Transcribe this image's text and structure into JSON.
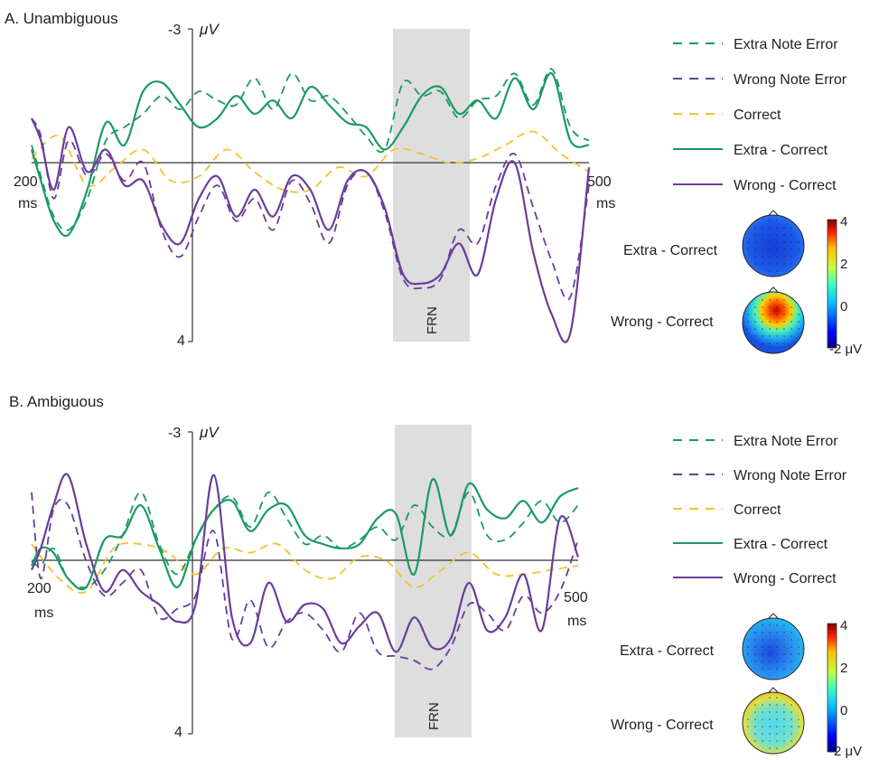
{
  "chart_data": [
    {
      "type": "line",
      "title": "A. Unambiguous",
      "xlabel": "ms",
      "ylabel": "μV",
      "xlim": [
        200,
        500
      ],
      "ylim": [
        -3,
        4
      ],
      "y_inverted": true,
      "x_tick_labels": [
        "200",
        "500"
      ],
      "y_tick_labels": [
        "-3",
        "4"
      ],
      "y_unit_label": "μV",
      "x_unit_label": "ms",
      "shaded_window": {
        "label": "FRN",
        "x": [
          386,
          424
        ]
      },
      "legend": [
        {
          "label": "Extra Note Error",
          "color": "#1a9a63",
          "dash": true
        },
        {
          "label": "Wrong Note Error",
          "color": "#6a3d9a",
          "dash": true
        },
        {
          "label": "Correct",
          "color": "#f2c230",
          "dash": true
        },
        {
          "label": "Extra - Correct",
          "color": "#1a9a63",
          "dash": false
        },
        {
          "label": "Wrong - Correct",
          "color": "#6a3d9a",
          "dash": false
        }
      ],
      "series": [
        {
          "name": "Extra Note Error",
          "color": "#1a9a63",
          "dash": true,
          "x": [
            200,
            205,
            212,
            220,
            230,
            240,
            250,
            260,
            270,
            280,
            290,
            300,
            310,
            320,
            330,
            340,
            350,
            360,
            370,
            380,
            390,
            400,
            410,
            420,
            430,
            440,
            450,
            460,
            470,
            480,
            490,
            500
          ],
          "y": [
            -0.4,
            0.3,
            1.2,
            1.5,
            0.8,
            -0.5,
            -0.8,
            -1.1,
            -1.5,
            -1.2,
            -1.6,
            -1.4,
            -1.3,
            -1.9,
            -1.2,
            -2.0,
            -1.4,
            -1.5,
            -1.1,
            -0.6,
            -0.3,
            -1.8,
            -1.5,
            -1.6,
            -1.0,
            -1.4,
            -1.5,
            -2.0,
            -1.3,
            -2.1,
            -0.8,
            -0.5
          ]
        },
        {
          "name": "Wrong Note Error",
          "color": "#6a3d9a",
          "dash": true,
          "x": [
            200,
            205,
            212,
            220,
            230,
            240,
            250,
            260,
            270,
            280,
            290,
            300,
            310,
            320,
            330,
            340,
            350,
            360,
            370,
            380,
            390,
            400,
            410,
            420,
            430,
            440,
            450,
            460,
            470,
            480,
            490,
            500
          ],
          "y": [
            -1.0,
            -0.6,
            0.8,
            -0.5,
            0.3,
            -0.2,
            0.4,
            0.0,
            1.5,
            2.1,
            1.2,
            0.5,
            1.3,
            0.8,
            1.5,
            0.4,
            0.9,
            1.8,
            0.5,
            0.2,
            1.1,
            2.6,
            2.8,
            2.6,
            1.5,
            1.8,
            0.5,
            -0.2,
            1.0,
            2.2,
            3.0,
            0.5
          ]
        },
        {
          "name": "Correct",
          "color": "#f2c230",
          "dash": true,
          "x": [
            200,
            215,
            230,
            245,
            260,
            275,
            290,
            305,
            320,
            335,
            350,
            365,
            380,
            395,
            410,
            425,
            440,
            455,
            470,
            485,
            500
          ],
          "y": [
            -0.1,
            -0.6,
            0.5,
            0.1,
            -0.3,
            0.4,
            0.3,
            -0.3,
            0.2,
            0.6,
            0.6,
            0.1,
            0.3,
            -0.3,
            -0.2,
            0.0,
            -0.1,
            -0.4,
            -0.7,
            -0.2,
            0.2
          ]
        },
        {
          "name": "Extra - Correct",
          "color": "#1a9a63",
          "dash": false,
          "x": [
            200,
            205,
            212,
            220,
            230,
            240,
            250,
            260,
            270,
            280,
            290,
            300,
            310,
            320,
            330,
            340,
            350,
            360,
            370,
            380,
            390,
            400,
            410,
            420,
            430,
            440,
            450,
            460,
            470,
            480,
            490,
            500
          ],
          "y": [
            -0.3,
            0.4,
            1.3,
            1.6,
            0.6,
            -0.9,
            -0.4,
            -1.6,
            -1.8,
            -1.3,
            -0.8,
            -1.0,
            -1.5,
            -1.1,
            -1.4,
            -1.0,
            -1.7,
            -1.3,
            -0.9,
            -0.8,
            -0.3,
            -0.8,
            -1.5,
            -1.7,
            -1.1,
            -1.4,
            -1.0,
            -1.9,
            -1.2,
            -2.0,
            -0.5,
            -0.4
          ]
        },
        {
          "name": "Wrong - Correct",
          "color": "#6a3d9a",
          "dash": false,
          "x": [
            200,
            205,
            212,
            220,
            230,
            240,
            250,
            260,
            270,
            280,
            290,
            300,
            310,
            320,
            330,
            340,
            350,
            360,
            370,
            380,
            390,
            400,
            410,
            420,
            430,
            440,
            450,
            460,
            470,
            480,
            490,
            500
          ],
          "y": [
            -1.0,
            -0.5,
            0.6,
            -0.8,
            0.2,
            -0.3,
            0.5,
            0.4,
            1.4,
            1.8,
            0.8,
            0.3,
            1.2,
            0.6,
            1.2,
            0.3,
            0.6,
            1.5,
            0.4,
            0.2,
            1.0,
            2.5,
            2.7,
            2.5,
            1.8,
            2.5,
            0.8,
            0.0,
            2.0,
            3.4,
            3.8,
            0.1
          ]
        }
      ],
      "topoplots": [
        {
          "label": "Extra - Correct",
          "pattern": "negative"
        },
        {
          "label": "Wrong - Correct",
          "pattern": "frontal-positive"
        }
      ],
      "colorbar": {
        "ticks": [
          "4",
          "2",
          "0",
          "-2 μV"
        ],
        "range": [
          -2,
          4
        ],
        "colormap": "jet"
      }
    },
    {
      "type": "line",
      "title": "B. Ambiguous",
      "xlabel": "ms",
      "ylabel": "μV",
      "xlim": [
        200,
        500
      ],
      "ylim": [
        -3,
        4
      ],
      "y_inverted": true,
      "x_tick_labels": [
        "200",
        "500"
      ],
      "y_tick_labels": [
        "-3",
        "4"
      ],
      "y_unit_label": "μV",
      "x_unit_label": "ms",
      "shaded_window": {
        "label": "FRN",
        "x": [
          388,
          426
        ]
      },
      "legend": [
        {
          "label": "Extra Note Error",
          "color": "#1a9a63",
          "dash": true
        },
        {
          "label": "Wrong Note Error",
          "color": "#6a3d9a",
          "dash": true
        },
        {
          "label": "Correct",
          "color": "#f2c230",
          "dash": true
        },
        {
          "label": "Extra - Correct",
          "color": "#1a9a63",
          "dash": false
        },
        {
          "label": "Wrong - Correct",
          "color": "#6a3d9a",
          "dash": false
        }
      ],
      "series": [
        {
          "name": "Extra Note Error",
          "color": "#1a9a63",
          "dash": true,
          "x": [
            200,
            205,
            212,
            220,
            230,
            240,
            250,
            260,
            270,
            280,
            290,
            300,
            310,
            320,
            330,
            340,
            350,
            360,
            370,
            380,
            390,
            400,
            410,
            420,
            430,
            440,
            450,
            460,
            470,
            480,
            490,
            500
          ],
          "y": [
            0.0,
            0.1,
            -0.3,
            0.4,
            0.6,
            0.2,
            -0.6,
            -1.6,
            -0.4,
            0.3,
            -0.5,
            -1.2,
            -1.5,
            -0.8,
            -1.6,
            -1.0,
            -0.4,
            -0.6,
            -0.3,
            -0.5,
            -0.8,
            -0.5,
            -1.3,
            -0.8,
            -0.6,
            -1.6,
            -0.6,
            -0.5,
            -0.9,
            -1.4,
            -0.9,
            -1.3
          ]
        },
        {
          "name": "Wrong Note Error",
          "color": "#6a3d9a",
          "dash": true,
          "x": [
            200,
            205,
            212,
            220,
            230,
            240,
            250,
            260,
            270,
            280,
            290,
            300,
            310,
            320,
            330,
            340,
            350,
            360,
            370,
            380,
            390,
            400,
            410,
            420,
            430,
            440,
            450,
            460,
            470,
            480,
            490,
            500
          ],
          "y": [
            -1.6,
            0.4,
            -1.2,
            -1.3,
            0.0,
            0.8,
            0.5,
            0.2,
            1.3,
            1.1,
            0.8,
            -0.7,
            1.8,
            0.9,
            2.0,
            1.4,
            1.2,
            1.6,
            2.1,
            1.2,
            2.1,
            2.2,
            2.3,
            2.5,
            2.0,
            1.0,
            1.2,
            1.6,
            0.8,
            1.2,
            0.7,
            -0.5
          ]
        },
        {
          "name": "Correct",
          "color": "#f2c230",
          "dash": true,
          "x": [
            200,
            215,
            230,
            245,
            260,
            275,
            290,
            305,
            320,
            335,
            350,
            365,
            380,
            395,
            410,
            425,
            440,
            455,
            470,
            485,
            500
          ],
          "y": [
            -0.4,
            0.4,
            0.7,
            -0.3,
            -0.4,
            -0.2,
            0.3,
            -0.3,
            -0.2,
            -0.4,
            0.2,
            0.4,
            -0.1,
            0.0,
            0.6,
            0.2,
            -0.2,
            0.3,
            0.3,
            0.2,
            0.1
          ]
        },
        {
          "name": "Extra - Correct",
          "color": "#1a9a63",
          "dash": false,
          "x": [
            200,
            205,
            212,
            220,
            230,
            240,
            250,
            260,
            270,
            280,
            290,
            300,
            310,
            320,
            330,
            340,
            350,
            360,
            370,
            380,
            390,
            400,
            410,
            420,
            430,
            440,
            450,
            460,
            470,
            480,
            490,
            500
          ],
          "y": [
            0.1,
            -0.3,
            -0.2,
            0.4,
            0.6,
            -0.5,
            -0.6,
            -1.3,
            -0.3,
            0.6,
            -0.5,
            -1.2,
            -1.4,
            -0.7,
            -1.2,
            -1.3,
            -0.6,
            -0.4,
            -0.3,
            -0.4,
            -1.0,
            -1.1,
            0.3,
            -1.9,
            -0.6,
            -1.8,
            -1.2,
            -1.0,
            -1.4,
            -0.9,
            -1.5,
            -1.7
          ]
        },
        {
          "name": "Wrong - Correct",
          "color": "#6a3d9a",
          "dash": false,
          "x": [
            200,
            205,
            212,
            220,
            230,
            240,
            250,
            260,
            270,
            280,
            290,
            300,
            310,
            320,
            330,
            340,
            350,
            360,
            370,
            380,
            390,
            400,
            410,
            420,
            430,
            440,
            450,
            460,
            470,
            480,
            490,
            500
          ],
          "y": [
            0.2,
            -0.3,
            -1.3,
            -2.0,
            -0.4,
            0.7,
            0.2,
            0.7,
            1.0,
            1.4,
            1.0,
            -2.0,
            1.3,
            1.9,
            0.5,
            1.4,
            1.0,
            1.1,
            1.9,
            1.5,
            1.2,
            2.1,
            1.3,
            2.0,
            1.8,
            0.5,
            1.6,
            1.3,
            0.3,
            1.6,
            -1.0,
            -0.1
          ]
        }
      ],
      "topoplots": [
        {
          "label": "Extra - Correct",
          "pattern": "mild-negative"
        },
        {
          "label": "Wrong - Correct",
          "pattern": "mild-positive"
        }
      ],
      "colorbar": {
        "ticks": [
          "4",
          "2",
          "0",
          "-2 μV"
        ],
        "range": [
          -2,
          4
        ],
        "colormap": "jet"
      }
    }
  ]
}
